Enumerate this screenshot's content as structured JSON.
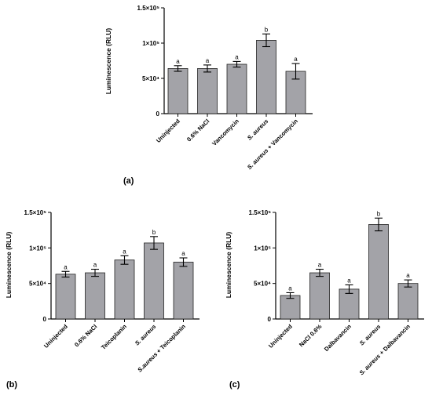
{
  "chart_data": [
    {
      "type": "bar",
      "panel": "(a)",
      "ylabel": "Luminescence (RLU)",
      "ylim": [
        0,
        150000
      ],
      "yticks": [
        0,
        50000,
        100000,
        150000
      ],
      "ytick_labels": [
        "0",
        "5×10⁴",
        "1×10⁵",
        "1.5×10⁵"
      ],
      "categories": [
        "Uninjected",
        "0.6% NaCl",
        "Vancomycin",
        "S. aureus",
        "S. aureus + Vancomycin"
      ],
      "category_italic": [
        "",
        "",
        "",
        "S. aureus",
        "S. aureus"
      ],
      "values": [
        64000,
        64000,
        70000,
        104000,
        60000
      ],
      "errors": [
        4000,
        5000,
        4000,
        9000,
        11000
      ],
      "significance": [
        "a",
        "a",
        "a",
        "b",
        "a"
      ],
      "grid": false
    },
    {
      "type": "bar",
      "panel": "(b)",
      "ylabel": "Luminescence (RLU)",
      "ylim": [
        0,
        150000
      ],
      "yticks": [
        0,
        50000,
        100000,
        150000
      ],
      "ytick_labels": [
        "0",
        "5×10⁴",
        "1×10⁵",
        "1.5×10⁵"
      ],
      "categories": [
        "Uninjected",
        "0.6% NaCl",
        "Teicoplanin",
        "S. aureus",
        "S.aureus + Teicoplanin"
      ],
      "category_italic": [
        "",
        "",
        "",
        "S. aureus",
        "S.aureus"
      ],
      "values": [
        63000,
        65000,
        83000,
        107000,
        80000
      ],
      "errors": [
        4000,
        5000,
        6000,
        9000,
        6000
      ],
      "significance": [
        "a",
        "a",
        "a",
        "b",
        "a"
      ],
      "grid": false
    },
    {
      "type": "bar",
      "panel": "(c)",
      "ylabel": "Luminescence (RLU)",
      "ylim": [
        0,
        150000
      ],
      "yticks": [
        0,
        50000,
        100000,
        150000
      ],
      "ytick_labels": [
        "0",
        "5×10⁴",
        "1×10⁵",
        "1.5×10⁵"
      ],
      "categories": [
        "Uninjected",
        "NaCl 0.6%",
        "Dalbavancin",
        "S. aureus",
        "S. aureus + Dalbavancin"
      ],
      "category_italic": [
        "",
        "",
        "",
        "S. aureus",
        "S. aureus"
      ],
      "values": [
        33000,
        65000,
        42000,
        133000,
        50000
      ],
      "errors": [
        4000,
        5000,
        6000,
        9000,
        5000
      ],
      "significance": [
        "a",
        "a",
        "a",
        "b",
        "a"
      ],
      "grid": false
    }
  ],
  "colors": {
    "bar_fill": "#a3a3a8",
    "bar_stroke": "#222222",
    "axis": "#000000"
  }
}
